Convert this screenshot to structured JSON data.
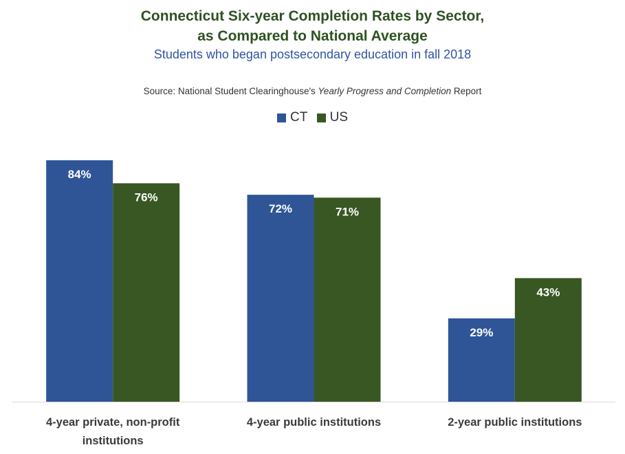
{
  "chart_data": {
    "type": "bar",
    "title_line1": "Connecticut Six-year Completion Rates by Sector,",
    "title_line2": "as Compared to National Average",
    "subtitle": "Students who began postsecondary education in fall 2018",
    "source_prefix": "Source: National Student Clearinghouse's ",
    "source_italic": "Yearly Progress and Completion",
    "source_suffix": " Report",
    "categories": [
      [
        "4-year private, non-profit",
        "institutions"
      ],
      [
        "4-year public institutions"
      ],
      [
        "2-year public institutions"
      ]
    ],
    "series": [
      {
        "name": "CT",
        "color": "#2f5597",
        "values": [
          84,
          72,
          29
        ],
        "labels": [
          "84%",
          "72%",
          "29%"
        ]
      },
      {
        "name": "US",
        "color": "#385723",
        "values": [
          76,
          71,
          43
        ],
        "labels": [
          "76%",
          "71%",
          "43%"
        ]
      }
    ],
    "ylim": [
      0,
      100
    ],
    "legend_position": "top-center",
    "grid": false
  }
}
